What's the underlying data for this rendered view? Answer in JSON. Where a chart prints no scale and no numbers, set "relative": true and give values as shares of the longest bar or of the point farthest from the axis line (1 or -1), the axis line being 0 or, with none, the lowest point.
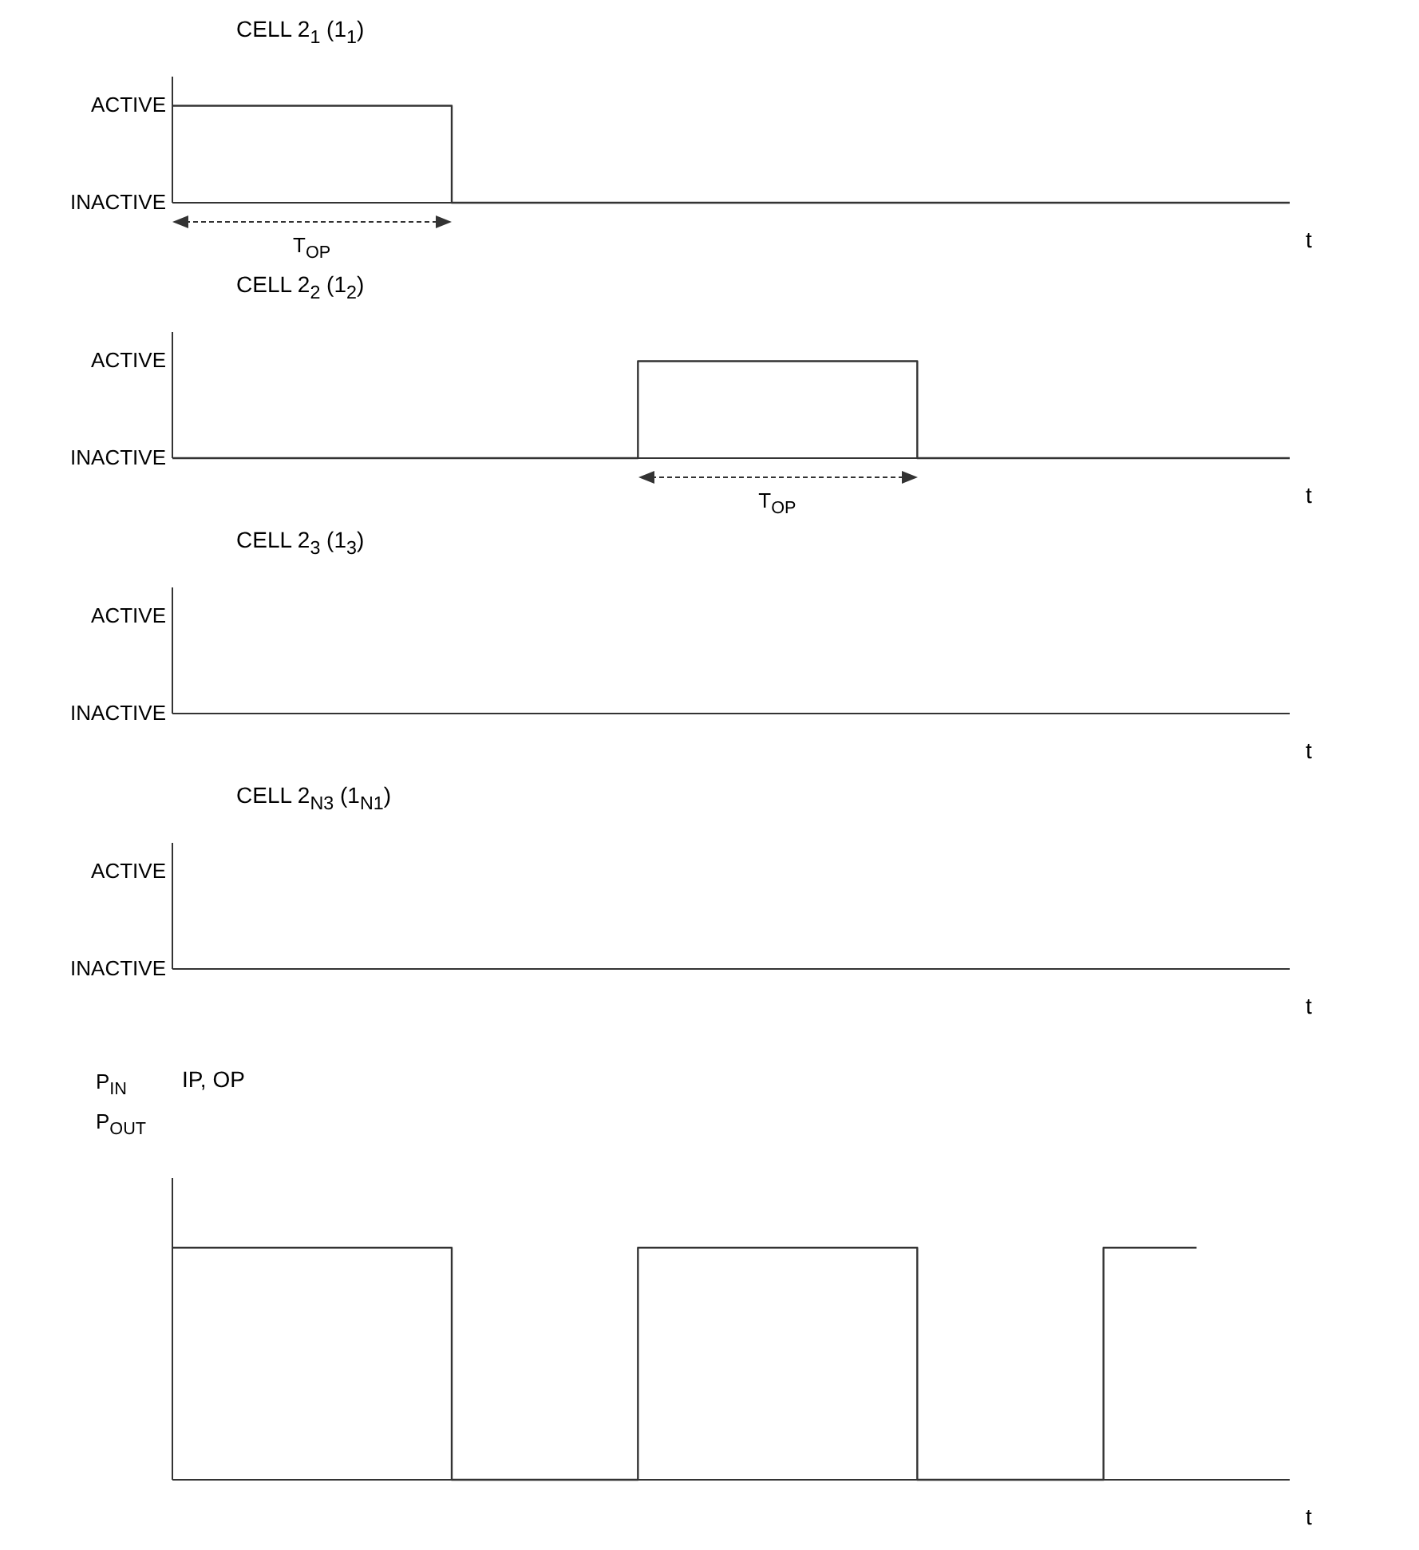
{
  "chart_data": [
    {
      "type": "step",
      "title": "CELL 2$_{1}$ (1$_{1}$)",
      "xlabel": "t",
      "relative": true,
      "categories": [
        null,
        null,
        null,
        null,
        null,
        null,
        null,
        null,
        null,
        null,
        null,
        null,
        null
      ],
      "values": [
        1,
        1,
        1,
        0,
        0,
        0,
        0,
        0,
        0,
        0,
        0,
        0,
        0
      ],
      "color": "#333333",
      "annotations": [
        "ACTIVE",
        "INACTIVE",
        "T$_{OP}$"
      ]
    },
    {
      "type": "step",
      "title": "CELL 2$_{2}$ (1$_{2}$)",
      "xlabel": "t",
      "relative": true,
      "categories": [
        null,
        null,
        null,
        null,
        null,
        null,
        null,
        null,
        null,
        null,
        null,
        null,
        null
      ],
      "values": [
        0,
        0,
        0,
        0,
        0,
        1,
        1,
        1,
        0,
        0,
        0,
        0,
        0
      ],
      "color": "#333333",
      "annotations": [
        "ACTIVE",
        "INACTIVE",
        "T$_{OP}$"
      ]
    },
    {
      "type": "other",
      "title": "CELL 2$_{3}$ (1$_{3}$)",
      "xlabel": "t",
      "annotations": [
        "ACTIVE",
        "INACTIVE"
      ]
    },
    {
      "type": "other",
      "title": "CELL 2$_{N3}$ (1$_{N1}$)",
      "xlabel": "t",
      "annotations": [
        "ACTIVE",
        "INACTIVE"
      ]
    },
    {
      "type": "step",
      "title": "IP, OP",
      "xlabel": "t",
      "ylabel": "P$_{IN}$ P$_{OUT}$",
      "relative": true,
      "categories": [
        null,
        null,
        null,
        null,
        null,
        null,
        null,
        null,
        null,
        null,
        null,
        null,
        null
      ],
      "values": [
        1,
        1,
        1,
        0,
        0,
        1,
        1,
        1,
        0,
        0,
        1,
        1,
        null
      ],
      "color": "#333333"
    }
  ]
}
